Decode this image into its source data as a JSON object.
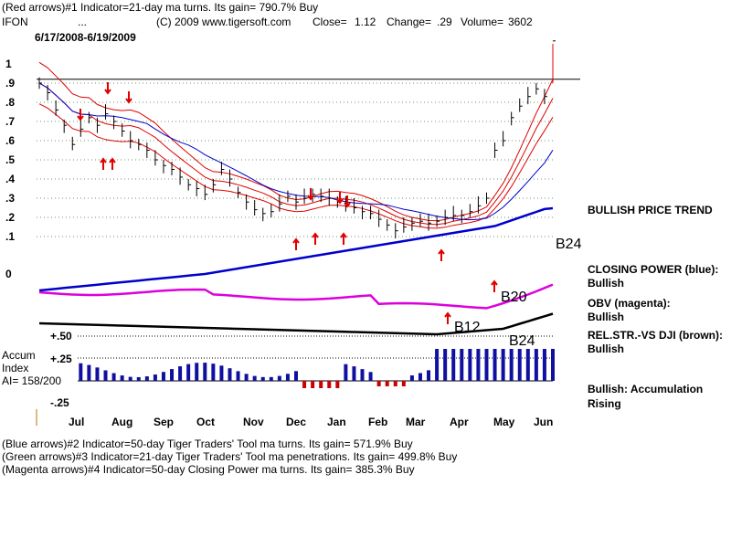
{
  "header": {
    "line1": "(Red arrows)#1 Indicator=21-day ma turns. Its gain= 790.7% Buy",
    "symbol": "IFON",
    "dots": "...",
    "copyright": "(C) 2009 www.tigersoft.com",
    "close_label": "Close=",
    "close_value": "1.12",
    "change_label": "Change=",
    "change_value": ".29",
    "volume_label": "Volume=",
    "volume_value": "3602",
    "date_range": "6/17/2008-6/19/2009"
  },
  "footer": {
    "line1": "(Blue arrows)#2 Indicator=50-day Tiger Traders' Tool ma turns. Its gain= 571.9% Buy",
    "line2": "(Green arrows)#3 Indicator=21-day Tiger Traders' Tool ma penetrations. Its gain= 499.8% Buy",
    "line3": "(Magenta arrows)#4 Indicator=50-day Closing Power ma turns. Its gain= 385.3% Buy"
  },
  "right_panel": {
    "price_trend": "BULLISH PRICE TREND",
    "closing_power_label": "CLOSING POWER (blue):",
    "closing_power_value": "Bullish",
    "obv_label": "OBV (magenta):",
    "obv_value": "Bullish",
    "relstr_label": "REL.STR.-VS DJI (brown):",
    "relstr_value": "Bullish",
    "accum_summary": "Bullish: Accumulation Rising"
  },
  "accum_panel": {
    "title_line1": "Accum",
    "title_line2": "Index",
    "ai_label": "AI= 158/200"
  },
  "signals": [
    "B24",
    "B20",
    "B12",
    "B24"
  ],
  "colors": {
    "price_bars": "#000000",
    "bands": "#e00000",
    "ma_blue": "#0000cc",
    "closing_power": "#0000cc",
    "obv": "#dd00dd",
    "relstr": "#000000",
    "accum_positive": "#1010a0",
    "accum_negative": "#cc0000"
  },
  "chart_data": {
    "type": "line",
    "title": "IFON 6/17/2008-6/19/2009",
    "y_ticks": [
      "1",
      ".9",
      ".8",
      ".7",
      ".6",
      ".5",
      ".4",
      ".3",
      ".2",
      ".1",
      "0"
    ],
    "x_ticks": [
      "Jul",
      "Aug",
      "Sep",
      "Oct",
      "Nov",
      "Dec",
      "Jan",
      "Feb",
      "Mar",
      "Apr",
      "May",
      "Jun"
    ],
    "accum_ticks": [
      "+.50",
      "+.25",
      "-.25"
    ],
    "ylim": [
      0,
      1.0
    ],
    "resistance_line": 0.92,
    "last_close": 1.12,
    "series": [
      {
        "name": "Close",
        "values": [
          0.9,
          0.85,
          0.76,
          0.68,
          0.58,
          0.66,
          0.72,
          0.68,
          0.74,
          0.7,
          0.65,
          0.6,
          0.58,
          0.55,
          0.5,
          0.47,
          0.45,
          0.41,
          0.37,
          0.35,
          0.32,
          0.37,
          0.45,
          0.4,
          0.33,
          0.28,
          0.24,
          0.22,
          0.23,
          0.27,
          0.31,
          0.28,
          0.3,
          0.32,
          0.31,
          0.3,
          0.28,
          0.27,
          0.25,
          0.23,
          0.22,
          0.19,
          0.16,
          0.13,
          0.15,
          0.17,
          0.18,
          0.17,
          0.18,
          0.2,
          0.21,
          0.21,
          0.23,
          0.26,
          0.3,
          0.55,
          0.6,
          0.72,
          0.78,
          0.83,
          0.87,
          0.83,
          1.12
        ]
      }
    ]
  }
}
